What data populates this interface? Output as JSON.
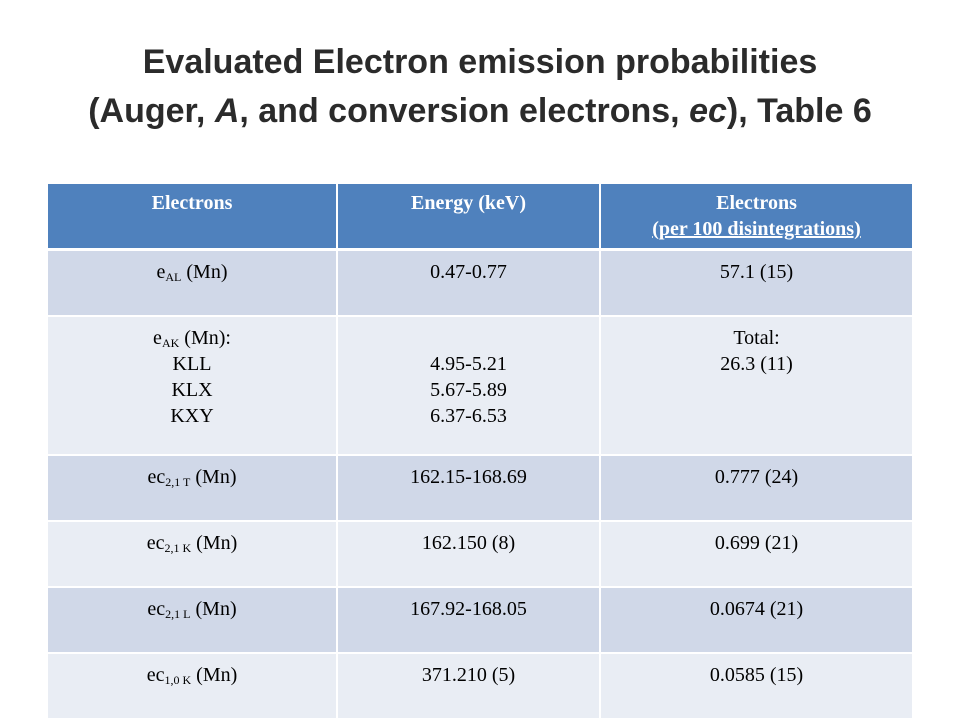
{
  "title": {
    "line1": "Evaluated Electron emission probabilities",
    "line2_part1": "(Auger, ",
    "line2_A": "A",
    "line2_part2": ", and conversion electrons, ",
    "line2_ec": "ec",
    "line2_part3": "), Table 6"
  },
  "table": {
    "headers": {
      "col1": "Electrons",
      "col2": "Energy (keV)",
      "col3_line1": "Electrons",
      "col3_line2": "(per 100 disintegrations)"
    },
    "rows": [
      {
        "e_main": "e",
        "e_sub": "AL",
        "e_suffix": " (Mn)",
        "energy": "0.47-0.77",
        "prob": "57.1 (15)"
      },
      {
        "e_main": "e",
        "e_sub": "AK",
        "e_suffix": " (Mn):",
        "sublines": [
          "KLL",
          "KLX",
          "KXY"
        ],
        "energies": [
          "4.95-5.21",
          "5.67-5.89",
          "6.37-6.53"
        ],
        "prob_line1": "Total:",
        "prob_line2": "26.3 (11)"
      },
      {
        "e_main": "ec",
        "e_sub": "2,1 T",
        "e_suffix": " (Mn)",
        "energy": "162.15-168.69",
        "prob": "0.777 (24)"
      },
      {
        "e_main": "ec",
        "e_sub": "2,1 K",
        "e_suffix": " (Mn)",
        "energy": "162.150 (8)",
        "prob": "0.699 (21)"
      },
      {
        "e_main": "ec",
        "e_sub": "2,1 L",
        "e_suffix": " (Mn)",
        "energy": "167.92-168.05",
        "prob": "0.0674 (21)"
      },
      {
        "e_main": "ec",
        "e_sub": "1,0 K",
        "e_suffix": " (Mn)",
        "energy": "371.210 (5)",
        "prob": "0.0585 (15)"
      }
    ]
  },
  "colors": {
    "header_bg": "#4f81bd",
    "row_band_dark": "#d0d8e8",
    "row_band_light": "#e9edf4",
    "title_text": "#2b2b2b"
  }
}
